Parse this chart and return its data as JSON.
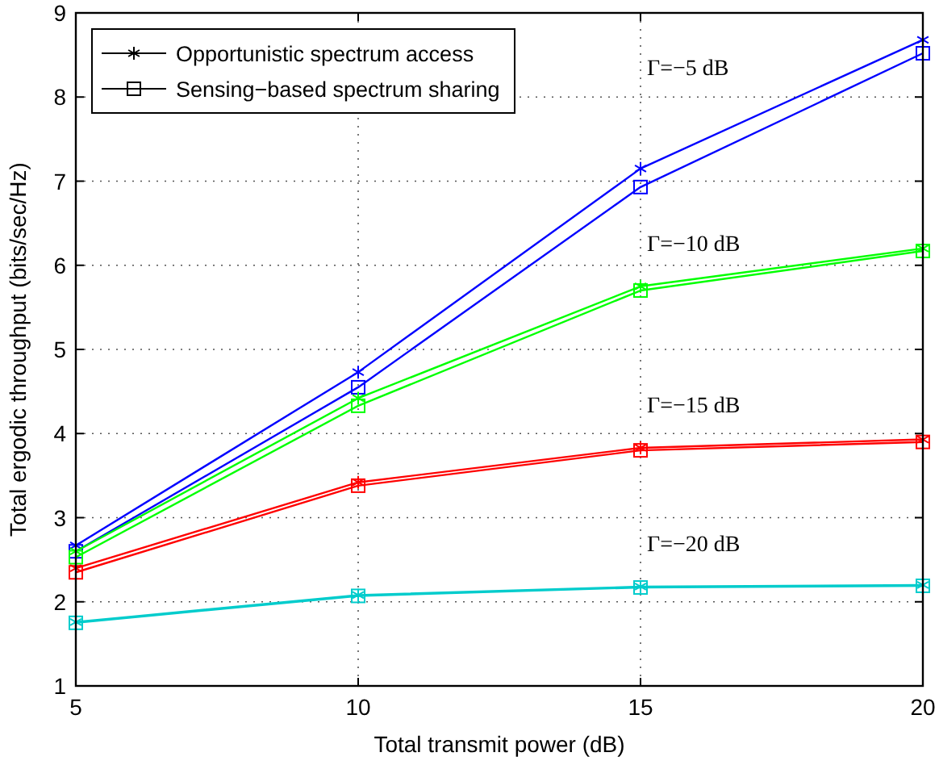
{
  "chart_data": {
    "type": "line",
    "xlabel": "Total transmit power (dB)",
    "ylabel": "Total ergodic throughput (bits/sec/Hz)",
    "x": [
      5,
      10,
      15,
      20
    ],
    "xlim": [
      5,
      20
    ],
    "xticks": [
      5,
      10,
      15,
      20
    ],
    "ylim": [
      1,
      9
    ],
    "yticks": [
      1,
      2,
      3,
      4,
      5,
      6,
      7,
      8,
      9
    ],
    "grid": true,
    "line_style": "solid",
    "series": [
      {
        "marker": "cross",
        "color": "#0000ff",
        "values": [
          2.67,
          4.73,
          7.15,
          8.68
        ]
      },
      {
        "marker": "square",
        "color": "#0000ff",
        "values": [
          2.6,
          4.55,
          6.93,
          8.52
        ]
      },
      {
        "marker": "cross",
        "color": "#00ff00",
        "values": [
          2.6,
          4.42,
          5.75,
          6.2
        ]
      },
      {
        "marker": "square",
        "color": "#00ff00",
        "values": [
          2.53,
          4.33,
          5.7,
          6.17
        ]
      },
      {
        "marker": "cross",
        "color": "#ff0000",
        "values": [
          2.4,
          3.42,
          3.83,
          3.93
        ]
      },
      {
        "marker": "square",
        "color": "#ff0000",
        "values": [
          2.35,
          3.38,
          3.8,
          3.9
        ]
      },
      {
        "marker": "cross",
        "color": "#00cccc",
        "values": [
          1.76,
          2.08,
          2.18,
          2.2
        ]
      },
      {
        "marker": "square",
        "color": "#00cccc",
        "values": [
          1.75,
          2.07,
          2.17,
          2.19
        ]
      }
    ],
    "annotations": [
      "Opportunistic spectrum access",
      "Sensing−based spectrum sharing",
      "Γ=−5 dB",
      "Γ=−10 dB",
      "Γ=−15 dB",
      "Γ=−20 dB"
    ]
  }
}
